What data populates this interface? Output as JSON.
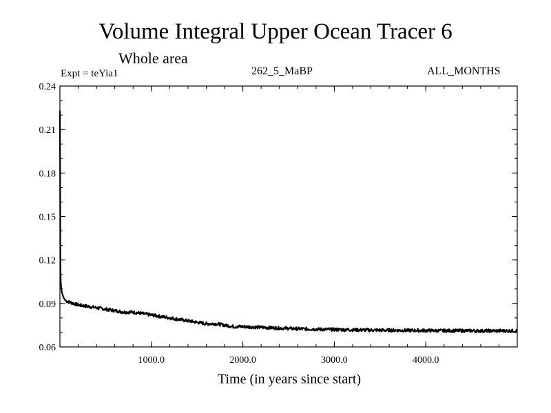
{
  "header": {
    "title": "Volume Integral Upper Ocean Tracer 6",
    "subtitle": "Whole area",
    "experiment": "Expt = teYia1",
    "run_label": "262_5_MaBP",
    "months_label": "ALL_MONTHS"
  },
  "chart_data": {
    "type": "line",
    "title": "Volume Integral Upper Ocean Tracer 6",
    "subtitle": "Whole area",
    "xlabel": "Time (in years since start)",
    "ylabel": "",
    "xlim": [
      0,
      5000
    ],
    "ylim": [
      0.06,
      0.24
    ],
    "x_ticks": [
      1000,
      2000,
      3000,
      4000
    ],
    "x_tick_labels": [
      "1000.0",
      "2000.0",
      "3000.0",
      "4000.0"
    ],
    "y_ticks": [
      0.06,
      0.09,
      0.12,
      0.15,
      0.18,
      0.21,
      0.24
    ],
    "y_tick_labels": [
      "0.06",
      "0.09",
      "0.12",
      "0.15",
      "0.18",
      "0.21",
      "0.24"
    ],
    "grid": false,
    "series": [
      {
        "name": "Tracer 6",
        "x": [
          0,
          5,
          10,
          20,
          40,
          60,
          100,
          200,
          300,
          400,
          500,
          600,
          700,
          800,
          900,
          1000,
          1100,
          1200,
          1300,
          1400,
          1500,
          1600,
          1700,
          1800,
          1900,
          2000,
          2200,
          2400,
          2600,
          2800,
          3000,
          3200,
          3400,
          3600,
          3800,
          4000,
          4200,
          4400,
          4600,
          4800,
          5000
        ],
        "values": [
          0.223,
          0.115,
          0.104,
          0.098,
          0.094,
          0.092,
          0.091,
          0.089,
          0.088,
          0.087,
          0.086,
          0.085,
          0.084,
          0.084,
          0.083,
          0.082,
          0.081,
          0.08,
          0.079,
          0.078,
          0.077,
          0.076,
          0.076,
          0.075,
          0.074,
          0.074,
          0.0735,
          0.073,
          0.0725,
          0.0722,
          0.072,
          0.0718,
          0.0716,
          0.0715,
          0.0714,
          0.0713,
          0.0712,
          0.0712,
          0.0711,
          0.0711,
          0.0711
        ]
      }
    ]
  }
}
